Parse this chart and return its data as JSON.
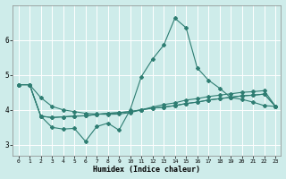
{
  "xlabel": "Humidex (Indice chaleur)",
  "bg_color": "#ceecea",
  "grid_color": "#b0d8d4",
  "line_color": "#2e7d72",
  "xlim": [
    -0.5,
    23.5
  ],
  "ylim": [
    2.7,
    7.0
  ],
  "yticks": [
    3,
    4,
    5,
    6
  ],
  "xticks": [
    0,
    1,
    2,
    3,
    4,
    5,
    6,
    7,
    8,
    9,
    10,
    11,
    12,
    13,
    14,
    15,
    16,
    17,
    18,
    19,
    20,
    21,
    22,
    23
  ],
  "series_peak_x": [
    0,
    1,
    2,
    3,
    4,
    5,
    6,
    7,
    8,
    9,
    10,
    11,
    12,
    13,
    14,
    15,
    16,
    17,
    18,
    19,
    20,
    21,
    22,
    23
  ],
  "series_peak_y": [
    4.72,
    4.72,
    3.82,
    3.5,
    3.45,
    3.47,
    3.1,
    3.52,
    3.62,
    3.42,
    4.0,
    4.95,
    5.45,
    5.85,
    6.62,
    6.35,
    5.2,
    4.85,
    4.62,
    4.35,
    4.3,
    4.22,
    4.12,
    4.1
  ],
  "series_top_x": [
    0,
    1,
    2,
    3,
    4,
    5,
    6,
    7,
    8,
    9,
    10,
    11,
    12,
    13,
    14,
    15,
    16,
    17,
    18,
    19,
    20,
    21,
    22,
    23
  ],
  "series_top_y": [
    4.72,
    4.72,
    4.35,
    4.1,
    4.0,
    3.95,
    3.9,
    3.88,
    3.87,
    3.88,
    3.92,
    4.0,
    4.08,
    4.15,
    4.2,
    4.28,
    4.32,
    4.38,
    4.42,
    4.46,
    4.5,
    4.52,
    4.55,
    4.1
  ],
  "series_mid_x": [
    0,
    1,
    2,
    3,
    4,
    5,
    6,
    7,
    8,
    9,
    10,
    11,
    12,
    13,
    14,
    15,
    16,
    17,
    18,
    19,
    20,
    21,
    22,
    23
  ],
  "series_mid_y": [
    4.72,
    4.72,
    3.82,
    3.78,
    3.8,
    3.82,
    3.83,
    3.87,
    3.9,
    3.92,
    3.95,
    4.0,
    4.05,
    4.08,
    4.12,
    4.18,
    4.22,
    4.28,
    4.32,
    4.36,
    4.4,
    4.42,
    4.45,
    4.1
  ],
  "series_bot_x": [
    0,
    1,
    2,
    3,
    4,
    5,
    6,
    7,
    8,
    9,
    10,
    11,
    12,
    13,
    14,
    15,
    16,
    17,
    18,
    19,
    20,
    21,
    22,
    23
  ],
  "series_bot_y": [
    4.72,
    4.72,
    3.82,
    3.78,
    3.8,
    3.82,
    3.83,
    3.87,
    3.9,
    3.92,
    3.95,
    4.0,
    4.05,
    4.08,
    4.12,
    4.18,
    4.22,
    4.28,
    4.32,
    4.36,
    4.4,
    4.42,
    4.45,
    4.1
  ]
}
